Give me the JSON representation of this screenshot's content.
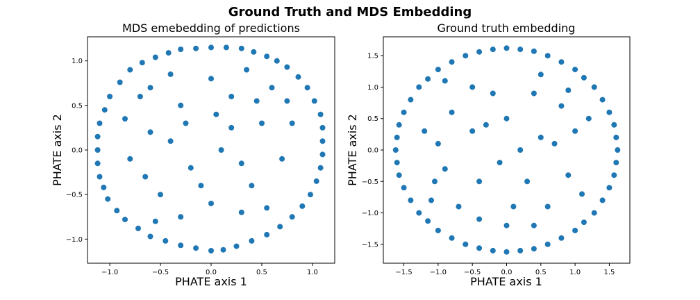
{
  "suptitle": "Ground Truth and MDS Embedding",
  "colors": {
    "points": "#1f77b4",
    "axes": "#000000",
    "background": "#ffffff"
  },
  "chart_data": [
    {
      "type": "scatter",
      "title": "MDS emebedding of predictions",
      "xlabel": "PHATE axis 1",
      "ylabel": "PHATE axis 2",
      "xlim": [
        -1.22,
        1.22
      ],
      "ylim": [
        -1.27,
        1.27
      ],
      "xticks": [
        -1.0,
        -0.5,
        0.0,
        0.5,
        1.0
      ],
      "xtick_labels": [
        "−1.0",
        "−0.5",
        "0.0",
        "0.5",
        "1.0"
      ],
      "yticks": [
        -1.0,
        -0.5,
        0.0,
        0.5,
        1.0
      ],
      "ytick_labels": [
        "−1.0",
        "−0.5",
        "0.0",
        "0.5",
        "1.0"
      ],
      "grid": false,
      "legend": "none",
      "shape": "rounded triangle-like disk, dense boundary ring",
      "series": [
        {
          "color": "#1f77b4",
          "points": [
            [
              0.0,
              1.15
            ],
            [
              0.3,
              1.14
            ],
            [
              -0.3,
              1.13
            ],
            [
              0.55,
              1.05
            ],
            [
              -0.55,
              1.04
            ],
            [
              0.75,
              0.93
            ],
            [
              -0.8,
              0.9
            ],
            [
              0.95,
              0.7
            ],
            [
              -1.0,
              0.6
            ],
            [
              1.08,
              0.4
            ],
            [
              -1.1,
              0.3
            ],
            [
              1.1,
              0.1
            ],
            [
              -1.12,
              0.0
            ],
            [
              1.08,
              -0.2
            ],
            [
              -1.1,
              -0.3
            ],
            [
              0.98,
              -0.5
            ],
            [
              -1.02,
              -0.55
            ],
            [
              0.8,
              -0.75
            ],
            [
              -0.85,
              -0.78
            ],
            [
              0.55,
              -0.95
            ],
            [
              -0.6,
              -0.97
            ],
            [
              0.25,
              -1.08
            ],
            [
              -0.3,
              -1.07
            ],
            [
              0.0,
              -1.13
            ],
            [
              0.12,
              -1.12
            ],
            [
              -0.15,
              -1.1
            ],
            [
              0.4,
              -1.02
            ],
            [
              -0.45,
              -1.02
            ],
            [
              0.68,
              -0.86
            ],
            [
              -0.72,
              -0.88
            ],
            [
              0.9,
              -0.63
            ],
            [
              -0.93,
              -0.68
            ],
            [
              1.04,
              -0.35
            ],
            [
              -1.06,
              -0.42
            ],
            [
              1.1,
              -0.05
            ],
            [
              -1.12,
              -0.15
            ],
            [
              1.1,
              0.25
            ],
            [
              -1.12,
              0.15
            ],
            [
              1.02,
              0.55
            ],
            [
              -1.05,
              0.45
            ],
            [
              0.86,
              0.82
            ],
            [
              -0.9,
              0.76
            ],
            [
              0.65,
              1.0
            ],
            [
              -0.68,
              0.98
            ],
            [
              0.42,
              1.1
            ],
            [
              -0.42,
              1.09
            ],
            [
              0.15,
              1.15
            ],
            [
              -0.15,
              1.14
            ],
            [
              0.2,
              0.6
            ],
            [
              -0.3,
              0.5
            ],
            [
              0.5,
              0.3
            ],
            [
              -0.6,
              0.2
            ],
            [
              0.1,
              0.0
            ],
            [
              -0.2,
              -0.2
            ],
            [
              0.4,
              -0.4
            ],
            [
              -0.5,
              -0.5
            ],
            [
              0.6,
              0.7
            ],
            [
              -0.7,
              0.6
            ],
            [
              0.7,
              -0.1
            ],
            [
              -0.8,
              -0.1
            ],
            [
              0.0,
              -0.6
            ],
            [
              0.3,
              -0.7
            ],
            [
              -0.3,
              -0.75
            ],
            [
              0.0,
              0.8
            ],
            [
              0.35,
              0.9
            ],
            [
              -0.4,
              0.85
            ],
            [
              0.8,
              0.3
            ],
            [
              -0.85,
              0.35
            ],
            [
              0.2,
              0.25
            ],
            [
              -0.4,
              0.1
            ],
            [
              0.55,
              -0.65
            ],
            [
              -0.65,
              -0.3
            ],
            [
              0.05,
              0.4
            ],
            [
              -0.1,
              -0.4
            ],
            [
              0.3,
              -0.15
            ],
            [
              -0.6,
              0.7
            ],
            [
              0.75,
              0.55
            ],
            [
              -0.25,
              0.3
            ],
            [
              0.45,
              0.55
            ],
            [
              -0.55,
              -0.8
            ]
          ]
        }
      ]
    },
    {
      "type": "scatter",
      "title": "Ground truth embedding",
      "xlabel": "PHATE axis 1",
      "ylabel": "PHATE axis 2",
      "xlim": [
        -1.8,
        1.8
      ],
      "ylim": [
        -1.8,
        1.8
      ],
      "xticks": [
        -1.5,
        -1.0,
        -0.5,
        0.0,
        0.5,
        1.0,
        1.5
      ],
      "xtick_labels": [
        "−1.5",
        "−1.0",
        "−0.5",
        "0.0",
        "0.5",
        "1.0",
        "1.5"
      ],
      "yticks": [
        -1.5,
        -1.0,
        -0.5,
        0.0,
        0.5,
        1.0,
        1.5
      ],
      "ytick_labels": [
        "−1.5",
        "−1.0",
        "−0.5",
        "0.0",
        "0.5",
        "1.0",
        "1.5"
      ],
      "grid": false,
      "legend": "none",
      "shape": "circular disk of radius ~1.6, dense boundary ring",
      "series": [
        {
          "color": "#1f77b4",
          "points": [
            [
              0.0,
              1.62
            ],
            [
              0.4,
              1.57
            ],
            [
              -0.4,
              1.56
            ],
            [
              0.8,
              1.4
            ],
            [
              -0.8,
              1.4
            ],
            [
              1.13,
              1.15
            ],
            [
              -1.15,
              1.13
            ],
            [
              1.4,
              0.8
            ],
            [
              -1.4,
              0.8
            ],
            [
              1.57,
              0.4
            ],
            [
              -1.57,
              0.4
            ],
            [
              1.62,
              0.0
            ],
            [
              -1.62,
              0.0
            ],
            [
              1.57,
              -0.4
            ],
            [
              -1.57,
              -0.4
            ],
            [
              1.4,
              -0.8
            ],
            [
              -1.4,
              -0.8
            ],
            [
              1.13,
              -1.15
            ],
            [
              -1.15,
              -1.13
            ],
            [
              0.8,
              -1.4
            ],
            [
              -0.8,
              -1.4
            ],
            [
              0.4,
              -1.57
            ],
            [
              -0.4,
              -1.56
            ],
            [
              0.0,
              -1.62
            ],
            [
              0.2,
              1.6
            ],
            [
              -0.2,
              1.6
            ],
            [
              0.6,
              1.5
            ],
            [
              -0.6,
              1.5
            ],
            [
              1.0,
              1.28
            ],
            [
              -1.0,
              1.28
            ],
            [
              1.28,
              1.0
            ],
            [
              -1.28,
              1.0
            ],
            [
              1.5,
              0.6
            ],
            [
              -1.5,
              0.6
            ],
            [
              1.6,
              0.2
            ],
            [
              -1.6,
              0.2
            ],
            [
              1.6,
              -0.2
            ],
            [
              -1.6,
              -0.2
            ],
            [
              1.5,
              -0.6
            ],
            [
              -1.5,
              -0.6
            ],
            [
              1.28,
              -1.0
            ],
            [
              -1.28,
              -1.0
            ],
            [
              1.0,
              -1.28
            ],
            [
              -1.0,
              -1.28
            ],
            [
              0.6,
              -1.5
            ],
            [
              -0.6,
              -1.5
            ],
            [
              0.2,
              -1.6
            ],
            [
              -0.2,
              -1.6
            ],
            [
              0.0,
              0.5
            ],
            [
              0.5,
              0.2
            ],
            [
              -0.5,
              0.3
            ],
            [
              0.3,
              -0.5
            ],
            [
              -0.4,
              -0.5
            ],
            [
              0.8,
              0.7
            ],
            [
              -0.8,
              0.6
            ],
            [
              0.9,
              -0.4
            ],
            [
              -0.9,
              -0.3
            ],
            [
              0.1,
              -0.9
            ],
            [
              -0.2,
              0.9
            ],
            [
              0.6,
              -0.9
            ],
            [
              -0.7,
              -0.9
            ],
            [
              1.0,
              0.3
            ],
            [
              -1.0,
              0.1
            ],
            [
              0.4,
              0.9
            ],
            [
              -0.5,
              1.0
            ],
            [
              0.2,
              0.0
            ],
            [
              -0.1,
              -0.2
            ],
            [
              0.7,
              0.1
            ],
            [
              -0.3,
              0.4
            ],
            [
              1.1,
              -0.7
            ],
            [
              -1.1,
              -0.8
            ],
            [
              0.5,
              1.2
            ],
            [
              -0.9,
              1.1
            ],
            [
              1.2,
              0.5
            ],
            [
              -1.2,
              0.3
            ],
            [
              0.0,
              -1.2
            ],
            [
              0.4,
              -1.2
            ],
            [
              -0.4,
              -1.1
            ],
            [
              0.9,
              0.95
            ],
            [
              -1.05,
              -0.5
            ]
          ]
        }
      ]
    }
  ]
}
